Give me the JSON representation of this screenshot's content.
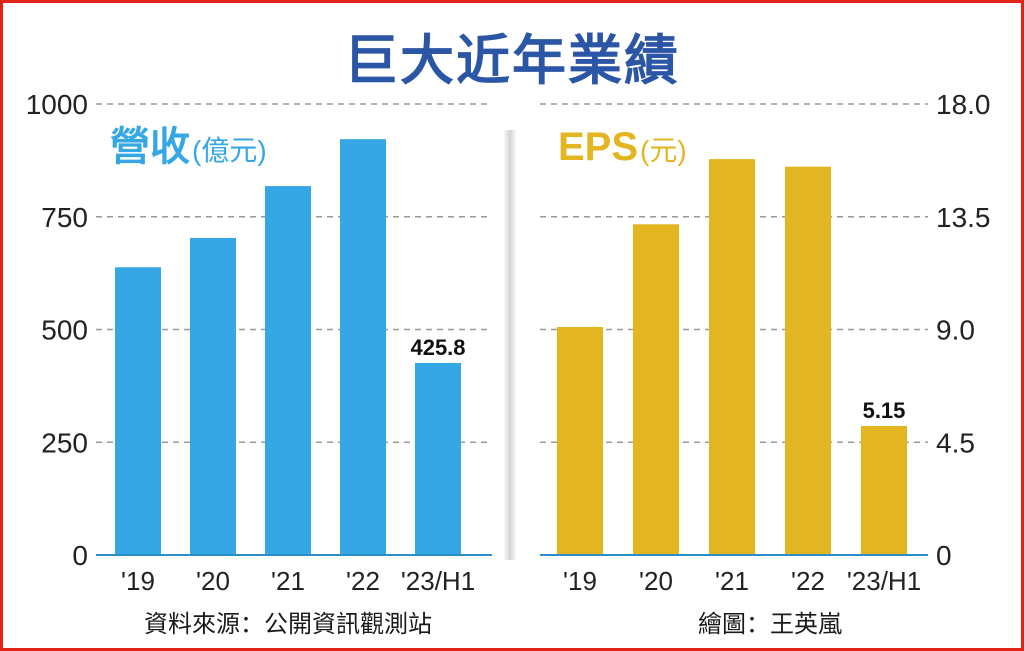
{
  "title": "巨大近年業績",
  "source": "資料來源：公開資訊觀測站",
  "credit": "繪圖：王英嵐",
  "chart_data": [
    {
      "type": "bar",
      "title": "營收",
      "unit": "(億元)",
      "categories": [
        "'19",
        "'20",
        "'21",
        "'22",
        "'23/H1"
      ],
      "values": [
        638,
        703,
        818,
        922,
        425.8
      ],
      "data_labels": [
        "",
        "",
        "",
        "",
        "425.8"
      ],
      "ylim": [
        0,
        1000
      ],
      "yticks": [
        "0",
        "250",
        "500",
        "750",
        "1000"
      ],
      "axis_side": "left",
      "color": "#35a7e5",
      "title_color": "#35a7e5",
      "grid": true
    },
    {
      "type": "bar",
      "title": "EPS",
      "unit": "(元)",
      "categories": [
        "'19",
        "'20",
        "'21",
        "'22",
        "'23/H1"
      ],
      "values": [
        9.1,
        13.2,
        15.8,
        15.5,
        5.15
      ],
      "data_labels": [
        "",
        "",
        "",
        "",
        "5.15"
      ],
      "ylim": [
        0,
        18
      ],
      "yticks": [
        "0",
        "4.5",
        "9.0",
        "13.5",
        "18.0"
      ],
      "axis_side": "right",
      "color": "#e2b521",
      "title_color": "#e2b521",
      "grid": true
    }
  ]
}
